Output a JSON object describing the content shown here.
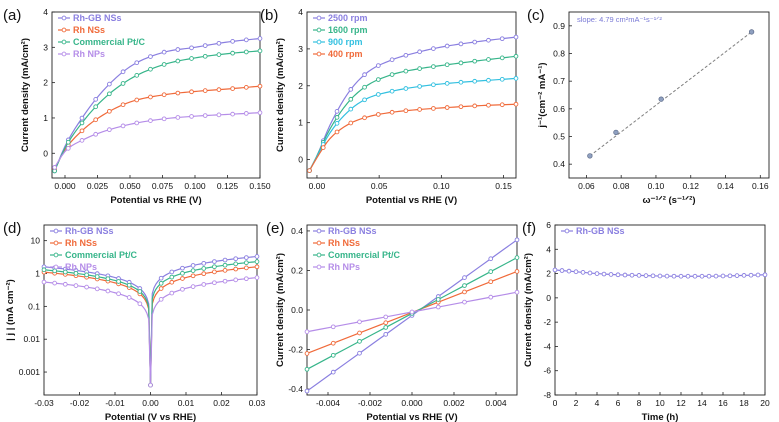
{
  "colors": {
    "purple": "#8a7fe0",
    "red": "#f06a3a",
    "green": "#37b58a",
    "lilac": "#b58de8",
    "cyan": "#33c0e0",
    "grey": "#808080"
  },
  "chart_data": [
    {
      "panel": "(a)",
      "type": "line",
      "xlabel": "Potential vs RHE (V)",
      "ylabel": "Current density (mA/cm²)",
      "xlim": [
        -0.01,
        0.15
      ],
      "ylim": [
        -0.7,
        4
      ],
      "xticks": [
        0.0,
        0.025,
        0.05,
        0.075,
        0.1,
        0.125,
        0.15
      ],
      "xtick_labels": [
        "0.000",
        "0.025",
        "0.050",
        "0.075",
        "0.100",
        "0.125",
        "0.150"
      ],
      "yticks": [
        0,
        1,
        2,
        3,
        4
      ],
      "ytick_labels": [
        "0",
        "1",
        "2",
        "3",
        "4"
      ],
      "legend_position": "top-left",
      "x": [
        -0.008,
        0.0,
        0.015,
        0.03,
        0.05,
        0.075,
        0.1,
        0.125,
        0.15
      ],
      "series": [
        {
          "name": "Rh-GB NSs",
          "color": "purple",
          "values": [
            -0.5,
            0.2,
            1.1,
            1.8,
            2.45,
            2.85,
            3.0,
            3.15,
            3.25
          ]
        },
        {
          "name": "Rh NSs",
          "color": "red",
          "values": [
            -0.45,
            0.1,
            0.7,
            1.1,
            1.45,
            1.65,
            1.75,
            1.82,
            1.9
          ]
        },
        {
          "name": "Commercial Pt/C",
          "color": "green",
          "values": [
            -0.5,
            0.15,
            0.95,
            1.55,
            2.1,
            2.5,
            2.7,
            2.82,
            2.9
          ]
        },
        {
          "name": "Rh NPs",
          "color": "lilac",
          "values": [
            -0.4,
            0.05,
            0.4,
            0.62,
            0.82,
            0.97,
            1.05,
            1.1,
            1.15
          ]
        }
      ]
    },
    {
      "panel": "(b)",
      "type": "line",
      "xlabel": "Potential vs RHE (V)",
      "ylabel": "Current density (mA/cm²)",
      "xlim": [
        -0.008,
        0.16
      ],
      "ylim": [
        -0.5,
        4
      ],
      "xticks": [
        0.0,
        0.05,
        0.1,
        0.15
      ],
      "xtick_labels": [
        "0.00",
        "0.05",
        "0.10",
        "0.15"
      ],
      "yticks": [
        0,
        1,
        2,
        3,
        4
      ],
      "ytick_labels": [
        "0",
        "1",
        "2",
        "3",
        "4"
      ],
      "legend_position": "top-left",
      "x": [
        -0.006,
        0.0,
        0.01,
        0.025,
        0.04,
        0.06,
        0.08,
        0.1,
        0.13,
        0.16
      ],
      "series": [
        {
          "name": "2500 rpm",
          "color": "purple",
          "values": [
            -0.3,
            0.1,
            0.9,
            1.8,
            2.35,
            2.7,
            2.9,
            3.05,
            3.2,
            3.32
          ]
        },
        {
          "name": "1600 rpm",
          "color": "green",
          "values": [
            -0.3,
            0.1,
            0.8,
            1.55,
            2.0,
            2.3,
            2.45,
            2.55,
            2.68,
            2.8
          ]
        },
        {
          "name": "900 rpm",
          "color": "cyan",
          "values": [
            -0.3,
            0.08,
            0.7,
            1.3,
            1.65,
            1.85,
            1.97,
            2.05,
            2.13,
            2.2
          ]
        },
        {
          "name": "400 rpm",
          "color": "red",
          "values": [
            -0.3,
            0.05,
            0.55,
            0.95,
            1.15,
            1.28,
            1.35,
            1.4,
            1.46,
            1.5
          ]
        }
      ]
    },
    {
      "panel": "(c)",
      "type": "scatter",
      "xlabel": "ω⁻¹ᐟ² (s⁻¹ᐟ²)",
      "ylabel": "j⁻¹(cm⁻² mA⁻¹)",
      "xlim": [
        0.05,
        0.165
      ],
      "ylim": [
        0.35,
        0.95
      ],
      "xticks": [
        0.06,
        0.08,
        0.1,
        0.12,
        0.14,
        0.16
      ],
      "xtick_labels": [
        "0.06",
        "0.08",
        "0.10",
        "0.12",
        "0.14",
        "0.16"
      ],
      "yticks": [
        0.4,
        0.5,
        0.6,
        0.7,
        0.8,
        0.9
      ],
      "ytick_labels": [
        "0.4",
        "0.5",
        "0.6",
        "0.7",
        "0.8",
        "0.9"
      ],
      "annotation": "slope: 4.79 cm²mA⁻¹s⁻¹ᐟ²",
      "x": [
        0.062,
        0.077,
        0.103,
        0.155
      ],
      "values": [
        0.43,
        0.515,
        0.635,
        0.878
      ],
      "fit_line": [
        [
          0.062,
          0.43
        ],
        [
          0.155,
          0.878
        ]
      ]
    },
    {
      "panel": "(d)",
      "type": "line",
      "xlabel": "Potential (V vs RHE)",
      "ylabel": "| j | (mA cm⁻²)",
      "yscale": "log",
      "xlim": [
        -0.03,
        0.03
      ],
      "ylim": [
        0.0002,
        30
      ],
      "xticks": [
        -0.03,
        -0.02,
        -0.01,
        0.0,
        0.01,
        0.02,
        0.03
      ],
      "xtick_labels": [
        "-0.03",
        "-0.02",
        "-0.01",
        "0.00",
        "0.01",
        "0.02",
        "0.03"
      ],
      "yticks": [
        0.001,
        0.01,
        0.1,
        1,
        10
      ],
      "ytick_labels": [
        "0.001",
        "0.01",
        "0.1",
        "1",
        "10"
      ],
      "legend_position": "top-left",
      "series": [
        {
          "name": "Rh-GB NSs",
          "color": "purple",
          "left": 1.6,
          "right": 3.3
        },
        {
          "name": "Rh NSs",
          "color": "red",
          "left": 1.1,
          "right": 1.6
        },
        {
          "name": "Commercial Pt/C",
          "color": "green",
          "left": 1.3,
          "right": 2.3
        },
        {
          "name": "Rh NPs",
          "color": "lilac",
          "left": 0.55,
          "right": 0.75
        }
      ]
    },
    {
      "panel": "(e)",
      "type": "line",
      "xlabel": "Potential vs RHE (V)",
      "ylabel": "Current density (mA/cm²)",
      "xlim": [
        -0.005,
        0.005
      ],
      "ylim": [
        -0.43,
        0.43
      ],
      "xticks": [
        -0.004,
        -0.002,
        0.0,
        0.002,
        0.004
      ],
      "xtick_labels": [
        "-0.004",
        "-0.002",
        "0.000",
        "0.002",
        "0.004"
      ],
      "yticks": [
        -0.4,
        -0.2,
        0.0,
        0.2,
        0.4
      ],
      "ytick_labels": [
        "-0.4",
        "-0.2",
        "0.0",
        "0.2",
        "0.4"
      ],
      "legend_position": "top-left",
      "series": [
        {
          "name": "Rh-GB NSs",
          "color": "purple",
          "values_at_limits": [
            -0.41,
            0.355
          ]
        },
        {
          "name": "Rh NSs",
          "color": "red",
          "values_at_limits": [
            -0.22,
            0.195
          ]
        },
        {
          "name": "Commercial Pt/C",
          "color": "green",
          "values_at_limits": [
            -0.3,
            0.265
          ]
        },
        {
          "name": "Rh NPs",
          "color": "lilac",
          "values_at_limits": [
            -0.11,
            0.09
          ]
        }
      ]
    },
    {
      "panel": "(f)",
      "type": "line",
      "xlabel": "Time (h)",
      "ylabel": "Current density (mA/cm²)",
      "xlim": [
        0,
        20
      ],
      "ylim": [
        -8,
        6
      ],
      "xticks": [
        0,
        2,
        4,
        6,
        8,
        10,
        12,
        14,
        16,
        18,
        20
      ],
      "xtick_labels": [
        "0",
        "2",
        "4",
        "6",
        "8",
        "10",
        "12",
        "14",
        "16",
        "18",
        "20"
      ],
      "yticks": [
        -8,
        -6,
        -4,
        -2,
        0,
        2,
        4,
        6
      ],
      "ytick_labels": [
        "-8",
        "-6",
        "-4",
        "-2",
        "0",
        "2",
        "4",
        "6"
      ],
      "legend_position": "top-left",
      "x": [
        0,
        2,
        4,
        6,
        8,
        10,
        12,
        14,
        16,
        18,
        20
      ],
      "series": [
        {
          "name": "Rh-GB NSs",
          "color": "purple",
          "values": [
            2.3,
            2.15,
            2.0,
            1.9,
            1.85,
            1.8,
            1.78,
            1.78,
            1.8,
            1.85,
            1.9
          ]
        }
      ]
    }
  ]
}
